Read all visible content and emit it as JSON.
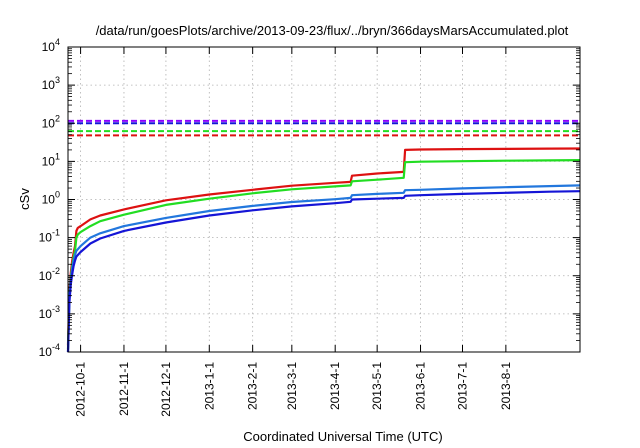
{
  "chart_data": {
    "type": "line",
    "title": "/data/run/goesPlots/archive/2013-09-23/flux/../bryn/366daysMarsAccumulated.plot",
    "xlabel": "Coordinated Universal Time (UTC)",
    "ylabel": "cSv",
    "y_scale": "log",
    "ylim": [
      0.0001,
      10000
    ],
    "xlim": [
      "2012-09-22",
      "2013-09-23"
    ],
    "grid": true,
    "y_ticks": [
      {
        "base": "10",
        "exp": "-4",
        "value": 0.0001
      },
      {
        "base": "10",
        "exp": "-3",
        "value": 0.001
      },
      {
        "base": "10",
        "exp": "-2",
        "value": 0.01
      },
      {
        "base": "10",
        "exp": "-1",
        "value": 0.1
      },
      {
        "base": "10",
        "exp": "0",
        "value": 1
      },
      {
        "base": "10",
        "exp": "1",
        "value": 10
      },
      {
        "base": "10",
        "exp": "2",
        "value": 100
      },
      {
        "base": "10",
        "exp": "3",
        "value": 1000
      },
      {
        "base": "10",
        "exp": "4",
        "value": 10000
      }
    ],
    "x_ticks": [
      {
        "label": "2012-10-1",
        "date": "2012-10-01"
      },
      {
        "label": "2012-11-1",
        "date": "2012-11-01"
      },
      {
        "label": "2012-12-1",
        "date": "2012-12-01"
      },
      {
        "label": "2013-1-1",
        "date": "2013-01-01"
      },
      {
        "label": "2013-2-1",
        "date": "2013-02-01"
      },
      {
        "label": "2013-3-1",
        "date": "2013-03-01"
      },
      {
        "label": "2013-4-1",
        "date": "2013-04-01"
      },
      {
        "label": "2013-5-1",
        "date": "2013-05-01"
      },
      {
        "label": "2013-6-1",
        "date": "2013-06-01"
      },
      {
        "label": "2013-7-1",
        "date": "2013-07-01"
      },
      {
        "label": "2013-8-1",
        "date": "2013-08-01"
      }
    ],
    "limits": [
      {
        "color": "#8b00ff",
        "value": 115
      },
      {
        "color": "#1515d6",
        "value": 100
      },
      {
        "color": "#22dd22",
        "value": 62
      },
      {
        "color": "#dd1111",
        "value": 48
      }
    ],
    "series": [
      {
        "color": "#dd1111",
        "x": [
          "2012-09-22",
          "2012-09-23",
          "2012-09-24",
          "2012-09-25",
          "2012-09-26",
          "2012-09-27",
          "2012-09-28",
          "2012-09-29",
          "2012-10-01",
          "2012-10-08",
          "2012-10-15",
          "2012-11-01",
          "2012-12-01",
          "2013-01-01",
          "2013-02-01",
          "2013-03-01",
          "2013-04-01",
          "2013-04-12",
          "2013-04-13",
          "2013-05-01",
          "2013-05-20",
          "2013-05-21",
          "2013-06-01",
          "2013-07-01",
          "2013-08-01",
          "2013-09-01",
          "2013-09-23"
        ],
        "y": [
          0.00015,
          0.004,
          0.012,
          0.025,
          0.04,
          0.06,
          0.15,
          0.18,
          0.2,
          0.3,
          0.38,
          0.55,
          0.95,
          1.35,
          1.8,
          2.3,
          2.75,
          2.9,
          4.2,
          4.8,
          5.3,
          20,
          20.5,
          21,
          21.3,
          21.6,
          21.8
        ]
      },
      {
        "color": "#22dd22",
        "x": [
          "2012-09-22",
          "2012-09-23",
          "2012-09-24",
          "2012-09-25",
          "2012-09-26",
          "2012-09-27",
          "2012-09-28",
          "2012-09-29",
          "2012-10-01",
          "2012-10-08",
          "2012-10-15",
          "2012-11-01",
          "2012-12-01",
          "2013-01-01",
          "2013-02-01",
          "2013-03-01",
          "2013-04-01",
          "2013-04-12",
          "2013-04-13",
          "2013-05-01",
          "2013-05-20",
          "2013-05-21",
          "2013-06-01",
          "2013-07-01",
          "2013-08-01",
          "2013-09-01",
          "2013-09-23"
        ],
        "y": [
          0.00012,
          0.003,
          0.009,
          0.018,
          0.03,
          0.045,
          0.1,
          0.12,
          0.14,
          0.2,
          0.27,
          0.4,
          0.72,
          1.05,
          1.45,
          1.85,
          2.2,
          2.35,
          3.0,
          3.3,
          3.7,
          9.5,
          9.8,
          10.1,
          10.4,
          10.6,
          10.8
        ]
      },
      {
        "color": "#2277dd",
        "x": [
          "2012-09-22",
          "2012-09-23",
          "2012-09-24",
          "2012-09-25",
          "2012-09-26",
          "2012-09-27",
          "2012-09-28",
          "2012-10-01",
          "2012-10-08",
          "2012-10-15",
          "2012-11-01",
          "2012-12-01",
          "2013-01-01",
          "2013-02-01",
          "2013-03-01",
          "2013-04-01",
          "2013-04-12",
          "2013-04-13",
          "2013-05-01",
          "2013-05-20",
          "2013-05-21",
          "2013-06-01",
          "2013-07-01",
          "2013-08-01",
          "2013-09-01",
          "2013-09-23"
        ],
        "y": [
          0.0001,
          0.003,
          0.008,
          0.015,
          0.025,
          0.035,
          0.045,
          0.06,
          0.1,
          0.13,
          0.2,
          0.33,
          0.5,
          0.68,
          0.86,
          1.02,
          1.1,
          1.3,
          1.4,
          1.5,
          1.75,
          1.8,
          1.95,
          2.1,
          2.25,
          2.35
        ]
      },
      {
        "color": "#1515d6",
        "x": [
          "2012-09-22",
          "2012-09-23",
          "2012-09-24",
          "2012-09-25",
          "2012-09-26",
          "2012-09-27",
          "2012-09-28",
          "2012-10-01",
          "2012-10-08",
          "2012-10-15",
          "2012-11-01",
          "2012-12-01",
          "2013-01-01",
          "2013-02-01",
          "2013-03-01",
          "2013-04-01",
          "2013-04-12",
          "2013-04-13",
          "2013-05-01",
          "2013-05-20",
          "2013-05-21",
          "2013-06-01",
          "2013-07-01",
          "2013-08-01",
          "2013-09-01",
          "2013-09-23"
        ],
        "y": [
          0.0001,
          0.002,
          0.006,
          0.011,
          0.018,
          0.025,
          0.032,
          0.042,
          0.07,
          0.095,
          0.15,
          0.25,
          0.38,
          0.52,
          0.66,
          0.8,
          0.87,
          1.0,
          1.05,
          1.1,
          1.25,
          1.3,
          1.4,
          1.5,
          1.6,
          1.65
        ]
      }
    ]
  }
}
